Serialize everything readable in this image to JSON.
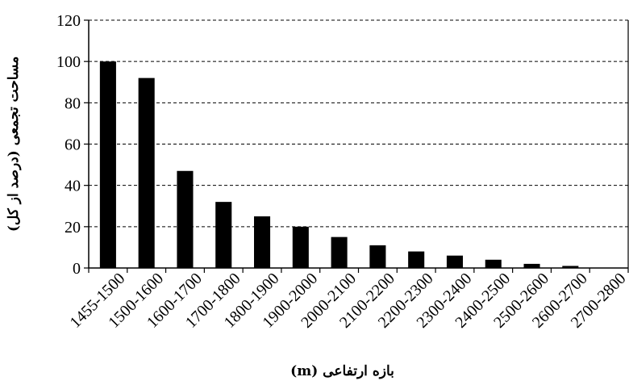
{
  "chart_data": {
    "type": "bar",
    "categories": [
      "1455-1500",
      "1500-1600",
      "1600-1700",
      "1700-1800",
      "1800-1900",
      "1900-2000",
      "2000-2100",
      "2100-2200",
      "2200-2300",
      "2300-2400",
      "2400-2500",
      "2500-2600",
      "2600-2700",
      "2700-2800"
    ],
    "values": [
      100,
      92,
      47,
      32,
      25,
      20,
      15,
      11,
      8,
      6,
      4,
      2,
      1,
      0
    ],
    "ylim": [
      0,
      120
    ],
    "yticks": [
      0,
      20,
      40,
      60,
      80,
      100,
      120
    ],
    "xlabel": "بازه ارتفاعی (m)",
    "ylabel": "مساحت تجمعی (درصد از کل)",
    "grid": "horizontal dashed",
    "bar_color": "#000000"
  }
}
